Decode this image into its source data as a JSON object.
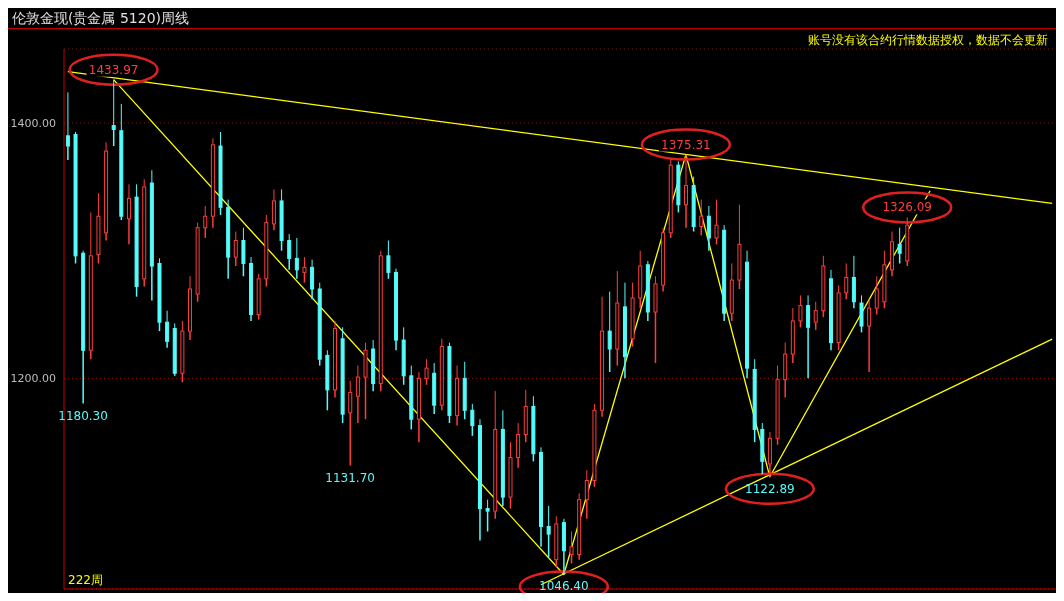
{
  "chart_data": {
    "type": "candlestick",
    "title": "伦敦金现(贵金属 5120)周线",
    "annotations": [
      {
        "text": "1433.97",
        "y": 1433.97
      },
      {
        "text": "1375.31",
        "y": 1375.31
      },
      {
        "text": "1326.09",
        "y": 1326.09
      },
      {
        "text": "1122.89",
        "y": 1122.89
      },
      {
        "text": "1046.40",
        "y": 1046.4
      },
      {
        "text": "1131.70",
        "y": 1131.7
      },
      {
        "text": "1180.30",
        "y": 1180.3
      },
      "账号没有该合约行情数据授权，数据不会更新",
      "222周"
    ],
    "categories": [
      null,
      null,
      null,
      null,
      null,
      null,
      null,
      null,
      null,
      null,
      null,
      null,
      null,
      null,
      null,
      null,
      null,
      null,
      null,
      null,
      null,
      null,
      null,
      null,
      null,
      null,
      null,
      null,
      null,
      null,
      null,
      null,
      null,
      null,
      null,
      null,
      null,
      null,
      null,
      null,
      null,
      null,
      null,
      null,
      null,
      null,
      null,
      null,
      null,
      null,
      null,
      null,
      null,
      null,
      null,
      null,
      null,
      null,
      null,
      null,
      null,
      null,
      null,
      null,
      null,
      null,
      null,
      null,
      null,
      null,
      null,
      null,
      null,
      null,
      null,
      null,
      null,
      null,
      null,
      null,
      null,
      null,
      null,
      null,
      null,
      null,
      null,
      null,
      null,
      null,
      null,
      null,
      null,
      null,
      null,
      null,
      null,
      null,
      null,
      null,
      null,
      null,
      null,
      null,
      null,
      null,
      null,
      null,
      null,
      null,
      null,
      null,
      null,
      null,
      null,
      null,
      null,
      null,
      null,
      null,
      null,
      null,
      null,
      null,
      null,
      null,
      null,
      null,
      null,
      null
    ],
    "ohlc": [
      [
        1390,
        1424,
        1371,
        1382
      ],
      [
        1391,
        1393,
        1290,
        1296
      ],
      [
        1298,
        1300,
        1180.3,
        1222
      ],
      [
        1222,
        1330,
        1215,
        1296
      ],
      [
        1297,
        1345,
        1290,
        1327
      ],
      [
        1314,
        1385,
        1308,
        1378
      ],
      [
        1398,
        1433.97,
        1382,
        1395
      ],
      [
        1394,
        1415,
        1324,
        1327
      ],
      [
        1325,
        1352,
        1305,
        1341
      ],
      [
        1342,
        1352,
        1264,
        1272
      ],
      [
        1278,
        1356,
        1272,
        1350
      ],
      [
        1353,
        1363,
        1261,
        1288
      ],
      [
        1290,
        1294,
        1237,
        1244
      ],
      [
        1244,
        1253,
        1224,
        1229
      ],
      [
        1239,
        1243,
        1202,
        1204
      ],
      [
        1204,
        1245,
        1197,
        1237
      ],
      [
        1237,
        1280,
        1230,
        1270
      ],
      [
        1266,
        1322,
        1260,
        1318
      ],
      [
        1318,
        1335,
        1310,
        1327
      ],
      [
        1327,
        1388,
        1318,
        1383
      ],
      [
        1382,
        1393,
        1328,
        1334
      ],
      [
        1334,
        1340,
        1278,
        1295
      ],
      [
        1295,
        1315,
        1288,
        1308
      ],
      [
        1308,
        1318,
        1280,
        1290
      ],
      [
        1290,
        1295,
        1245,
        1250
      ],
      [
        1250,
        1282,
        1246,
        1278
      ],
      [
        1278,
        1328,
        1272,
        1322
      ],
      [
        1321,
        1348,
        1316,
        1339
      ],
      [
        1339,
        1348,
        1300,
        1308
      ],
      [
        1308,
        1313,
        1285,
        1294
      ],
      [
        1294,
        1310,
        1278,
        1285
      ],
      [
        1283,
        1295,
        1275,
        1287
      ],
      [
        1287,
        1293,
        1262,
        1270
      ],
      [
        1270,
        1275,
        1210,
        1215
      ],
      [
        1218,
        1222,
        1175,
        1191
      ],
      [
        1191,
        1245,
        1185,
        1239
      ],
      [
        1231,
        1240,
        1165,
        1172
      ],
      [
        1173,
        1198,
        1131.7,
        1189
      ],
      [
        1186,
        1210,
        1165,
        1201
      ],
      [
        1201,
        1228,
        1168,
        1222
      ],
      [
        1223,
        1230,
        1190,
        1196
      ],
      [
        1196,
        1300,
        1190,
        1296
      ],
      [
        1296,
        1308,
        1278,
        1283
      ],
      [
        1283,
        1286,
        1222,
        1230
      ],
      [
        1230,
        1240,
        1195,
        1202
      ],
      [
        1202,
        1210,
        1160,
        1168
      ],
      [
        1168,
        1205,
        1150,
        1200
      ],
      [
        1200,
        1215,
        1195,
        1208
      ],
      [
        1204,
        1212,
        1172,
        1179
      ],
      [
        1179,
        1231,
        1175,
        1225
      ],
      [
        1225,
        1228,
        1165,
        1171
      ],
      [
        1171,
        1210,
        1163,
        1200
      ],
      [
        1200,
        1213,
        1168,
        1175
      ],
      [
        1175,
        1180,
        1155,
        1163
      ],
      [
        1163,
        1168,
        1073,
        1098
      ],
      [
        1098,
        1105,
        1080,
        1096
      ],
      [
        1096,
        1190,
        1090,
        1160
      ],
      [
        1160,
        1175,
        1100,
        1107
      ],
      [
        1107,
        1150,
        1098,
        1138
      ],
      [
        1138,
        1165,
        1130,
        1156
      ],
      [
        1156,
        1191,
        1150,
        1178
      ],
      [
        1178,
        1186,
        1135,
        1141
      ],
      [
        1142,
        1146,
        1068,
        1084
      ],
      [
        1084,
        1100,
        1060,
        1078
      ],
      [
        1058,
        1092,
        1052,
        1086
      ],
      [
        1087,
        1090,
        1046.4,
        1065
      ],
      [
        1062,
        1080,
        1055,
        1068
      ],
      [
        1062,
        1110,
        1058,
        1105
      ],
      [
        1105,
        1128,
        1090,
        1120
      ],
      [
        1120,
        1180,
        1115,
        1175
      ],
      [
        1175,
        1264,
        1170,
        1237
      ],
      [
        1237,
        1268,
        1205,
        1223
      ],
      [
        1223,
        1284,
        1210,
        1259
      ],
      [
        1256,
        1275,
        1200,
        1217
      ],
      [
        1231,
        1275,
        1225,
        1263
      ],
      [
        1263,
        1300,
        1255,
        1288
      ],
      [
        1289,
        1292,
        1245,
        1252
      ],
      [
        1252,
        1280,
        1212,
        1274
      ],
      [
        1273,
        1318,
        1268,
        1314
      ],
      [
        1314,
        1372,
        1310,
        1367
      ],
      [
        1367,
        1370,
        1330,
        1336
      ],
      [
        1336,
        1375.31,
        1318,
        1351
      ],
      [
        1351,
        1358,
        1315,
        1319
      ],
      [
        1319,
        1340,
        1312,
        1327
      ],
      [
        1327,
        1335,
        1300,
        1310
      ],
      [
        1310,
        1340,
        1305,
        1320
      ],
      [
        1316,
        1320,
        1245,
        1251
      ],
      [
        1251,
        1290,
        1245,
        1277
      ],
      [
        1277,
        1336,
        1270,
        1305
      ],
      [
        1291,
        1300,
        1200,
        1208
      ],
      [
        1207,
        1215,
        1150,
        1160
      ],
      [
        1160,
        1165,
        1125,
        1135
      ],
      [
        1133,
        1158,
        1122.89,
        1153
      ],
      [
        1153,
        1210,
        1148,
        1199
      ],
      [
        1199,
        1228,
        1185,
        1219
      ],
      [
        1219,
        1255,
        1212,
        1245
      ],
      [
        1245,
        1265,
        1240,
        1257
      ],
      [
        1257,
        1265,
        1200,
        1240
      ],
      [
        1244,
        1260,
        1238,
        1253
      ],
      [
        1253,
        1296,
        1248,
        1288
      ],
      [
        1278,
        1285,
        1222,
        1228
      ],
      [
        1228,
        1273,
        1222,
        1267
      ],
      [
        1267,
        1290,
        1262,
        1279
      ],
      [
        1279,
        1296,
        1255,
        1260
      ],
      [
        1259,
        1265,
        1236,
        1241
      ],
      [
        1241,
        1262,
        1205,
        1255
      ],
      [
        1255,
        1280,
        1250,
        1270
      ],
      [
        1260,
        1300,
        1255,
        1289
      ],
      [
        1285,
        1315,
        1280,
        1307
      ],
      [
        1305,
        1318,
        1290,
        1298
      ],
      [
        1292,
        1326.09,
        1288,
        1320
      ],
      null,
      null,
      null,
      null,
      null,
      null,
      null,
      null,
      null,
      null,
      null,
      null,
      null,
      null,
      null,
      null,
      null,
      null,
      null
    ],
    "series": [
      {
        "type": "line",
        "color": "#ffff00",
        "values": [
          1440.3,
          null,
          null,
          null,
          null,
          null,
          null,
          null,
          null,
          null,
          null,
          null,
          null,
          null,
          null,
          null,
          null,
          null,
          null,
          null,
          null,
          null,
          null,
          null,
          null,
          null,
          null,
          null,
          null,
          null,
          null,
          null,
          null,
          null,
          null,
          null,
          null,
          null,
          null,
          null,
          null,
          null,
          null,
          null,
          null,
          null,
          null,
          null,
          null,
          null,
          null,
          null,
          null,
          null,
          null,
          null,
          null,
          null,
          null,
          null,
          null,
          null,
          null,
          null,
          null,
          null,
          null,
          null,
          null,
          null,
          null,
          null,
          null,
          null,
          null,
          null,
          null,
          null,
          null,
          null,
          null,
          null,
          null,
          null,
          null,
          null,
          null,
          null,
          null,
          null,
          null,
          null,
          null,
          null,
          null,
          null,
          null,
          null,
          null,
          null,
          null,
          null,
          null,
          null,
          null,
          null,
          null,
          null,
          null,
          null,
          null,
          null,
          null,
          null,
          null,
          null,
          null,
          null,
          null,
          null,
          null,
          null,
          null,
          null,
          null,
          null,
          null,
          null,
          null,
          1337
        ]
      },
      {
        "type": "line",
        "color": "#ffff00",
        "values": [
          null,
          null,
          null,
          null,
          null,
          null,
          null,
          null,
          null,
          null,
          null,
          null,
          null,
          null,
          null,
          null,
          null,
          null,
          null,
          null,
          null,
          null,
          null,
          null,
          null,
          null,
          null,
          null,
          null,
          null,
          null,
          null,
          null,
          null,
          null,
          null,
          null,
          null,
          null,
          null,
          null,
          null,
          null,
          null,
          null,
          null,
          null,
          null,
          null,
          null,
          null,
          null,
          null,
          null,
          null,
          null,
          null,
          null,
          null,
          null,
          null,
          null,
          1038.3,
          null,
          null,
          null,
          null,
          null,
          null,
          null,
          null,
          null,
          null,
          null,
          null,
          null,
          null,
          null,
          null,
          null,
          null,
          null,
          null,
          null,
          null,
          null,
          null,
          null,
          null,
          null,
          null,
          null,
          null,
          null,
          null,
          null,
          null,
          null,
          null,
          null,
          null,
          null,
          null,
          null,
          null,
          null,
          null,
          null,
          null,
          null,
          null,
          null,
          null,
          null,
          null,
          null,
          null,
          null,
          null,
          null,
          null,
          null,
          null,
          null,
          null,
          null,
          null,
          null,
          null,
          1230.8
        ]
      },
      {
        "type": "line",
        "color": "#ffff00",
        "values": [
          null,
          null,
          null,
          null,
          null,
          null,
          1433.97,
          null,
          null,
          null,
          null,
          null,
          null,
          null,
          null,
          null,
          null,
          null,
          null,
          null,
          null,
          null,
          null,
          null,
          null,
          null,
          null,
          null,
          null,
          null,
          null,
          null,
          null,
          null,
          null,
          null,
          null,
          null,
          null,
          null,
          null,
          null,
          null,
          null,
          null,
          null,
          null,
          null,
          null,
          null,
          null,
          null,
          null,
          null,
          null,
          null,
          null,
          null,
          null,
          null,
          null,
          null,
          null,
          null,
          null,
          1046.4,
          null,
          null,
          null,
          null,
          null,
          null,
          null,
          null,
          null,
          null,
          null,
          null,
          null,
          null,
          null,
          1375.31,
          null,
          null,
          null,
          null,
          null,
          null,
          null,
          null,
          null,
          null,
          1122.89,
          null,
          null,
          null,
          null,
          null,
          null,
          null,
          null,
          null,
          null,
          null,
          null,
          null,
          null,
          null,
          null,
          null,
          null,
          null,
          null,
          1347,
          null,
          null,
          null,
          null,
          null,
          null,
          null,
          null,
          null,
          null,
          null,
          null,
          null,
          null,
          null,
          null
        ]
      }
    ],
    "ylim": [
      1035,
      1458
    ],
    "yticks": [
      {
        "value": 1400,
        "label": "1400.00"
      },
      {
        "value": 1200,
        "label": "1200.00"
      }
    ],
    "grid": "y",
    "tick_labels": "y"
  }
}
